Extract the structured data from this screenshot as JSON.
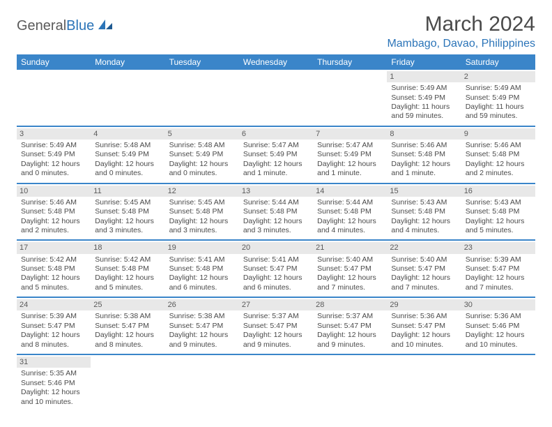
{
  "logo": {
    "text1": "General",
    "text2": "Blue"
  },
  "title": "March 2024",
  "location": "Mambago, Davao, Philippines",
  "colors": {
    "header_bg": "#3a85c9",
    "header_fg": "#ffffff",
    "daynum_bg": "#e8e8e8",
    "row_divider": "#3a85c9",
    "brand_blue": "#2b74b8",
    "text": "#4a4a4a"
  },
  "day_headers": [
    "Sunday",
    "Monday",
    "Tuesday",
    "Wednesday",
    "Thursday",
    "Friday",
    "Saturday"
  ],
  "weeks": [
    [
      null,
      null,
      null,
      null,
      null,
      {
        "n": "1",
        "sr": "Sunrise: 5:49 AM",
        "ss": "Sunset: 5:49 PM",
        "dl": "Daylight: 11 hours and 59 minutes."
      },
      {
        "n": "2",
        "sr": "Sunrise: 5:49 AM",
        "ss": "Sunset: 5:49 PM",
        "dl": "Daylight: 11 hours and 59 minutes."
      }
    ],
    [
      {
        "n": "3",
        "sr": "Sunrise: 5:49 AM",
        "ss": "Sunset: 5:49 PM",
        "dl": "Daylight: 12 hours and 0 minutes."
      },
      {
        "n": "4",
        "sr": "Sunrise: 5:48 AM",
        "ss": "Sunset: 5:49 PM",
        "dl": "Daylight: 12 hours and 0 minutes."
      },
      {
        "n": "5",
        "sr": "Sunrise: 5:48 AM",
        "ss": "Sunset: 5:49 PM",
        "dl": "Daylight: 12 hours and 0 minutes."
      },
      {
        "n": "6",
        "sr": "Sunrise: 5:47 AM",
        "ss": "Sunset: 5:49 PM",
        "dl": "Daylight: 12 hours and 1 minute."
      },
      {
        "n": "7",
        "sr": "Sunrise: 5:47 AM",
        "ss": "Sunset: 5:49 PM",
        "dl": "Daylight: 12 hours and 1 minute."
      },
      {
        "n": "8",
        "sr": "Sunrise: 5:46 AM",
        "ss": "Sunset: 5:48 PM",
        "dl": "Daylight: 12 hours and 1 minute."
      },
      {
        "n": "9",
        "sr": "Sunrise: 5:46 AM",
        "ss": "Sunset: 5:48 PM",
        "dl": "Daylight: 12 hours and 2 minutes."
      }
    ],
    [
      {
        "n": "10",
        "sr": "Sunrise: 5:46 AM",
        "ss": "Sunset: 5:48 PM",
        "dl": "Daylight: 12 hours and 2 minutes."
      },
      {
        "n": "11",
        "sr": "Sunrise: 5:45 AM",
        "ss": "Sunset: 5:48 PM",
        "dl": "Daylight: 12 hours and 3 minutes."
      },
      {
        "n": "12",
        "sr": "Sunrise: 5:45 AM",
        "ss": "Sunset: 5:48 PM",
        "dl": "Daylight: 12 hours and 3 minutes."
      },
      {
        "n": "13",
        "sr": "Sunrise: 5:44 AM",
        "ss": "Sunset: 5:48 PM",
        "dl": "Daylight: 12 hours and 3 minutes."
      },
      {
        "n": "14",
        "sr": "Sunrise: 5:44 AM",
        "ss": "Sunset: 5:48 PM",
        "dl": "Daylight: 12 hours and 4 minutes."
      },
      {
        "n": "15",
        "sr": "Sunrise: 5:43 AM",
        "ss": "Sunset: 5:48 PM",
        "dl": "Daylight: 12 hours and 4 minutes."
      },
      {
        "n": "16",
        "sr": "Sunrise: 5:43 AM",
        "ss": "Sunset: 5:48 PM",
        "dl": "Daylight: 12 hours and 5 minutes."
      }
    ],
    [
      {
        "n": "17",
        "sr": "Sunrise: 5:42 AM",
        "ss": "Sunset: 5:48 PM",
        "dl": "Daylight: 12 hours and 5 minutes."
      },
      {
        "n": "18",
        "sr": "Sunrise: 5:42 AM",
        "ss": "Sunset: 5:48 PM",
        "dl": "Daylight: 12 hours and 5 minutes."
      },
      {
        "n": "19",
        "sr": "Sunrise: 5:41 AM",
        "ss": "Sunset: 5:48 PM",
        "dl": "Daylight: 12 hours and 6 minutes."
      },
      {
        "n": "20",
        "sr": "Sunrise: 5:41 AM",
        "ss": "Sunset: 5:47 PM",
        "dl": "Daylight: 12 hours and 6 minutes."
      },
      {
        "n": "21",
        "sr": "Sunrise: 5:40 AM",
        "ss": "Sunset: 5:47 PM",
        "dl": "Daylight: 12 hours and 7 minutes."
      },
      {
        "n": "22",
        "sr": "Sunrise: 5:40 AM",
        "ss": "Sunset: 5:47 PM",
        "dl": "Daylight: 12 hours and 7 minutes."
      },
      {
        "n": "23",
        "sr": "Sunrise: 5:39 AM",
        "ss": "Sunset: 5:47 PM",
        "dl": "Daylight: 12 hours and 7 minutes."
      }
    ],
    [
      {
        "n": "24",
        "sr": "Sunrise: 5:39 AM",
        "ss": "Sunset: 5:47 PM",
        "dl": "Daylight: 12 hours and 8 minutes."
      },
      {
        "n": "25",
        "sr": "Sunrise: 5:38 AM",
        "ss": "Sunset: 5:47 PM",
        "dl": "Daylight: 12 hours and 8 minutes."
      },
      {
        "n": "26",
        "sr": "Sunrise: 5:38 AM",
        "ss": "Sunset: 5:47 PM",
        "dl": "Daylight: 12 hours and 9 minutes."
      },
      {
        "n": "27",
        "sr": "Sunrise: 5:37 AM",
        "ss": "Sunset: 5:47 PM",
        "dl": "Daylight: 12 hours and 9 minutes."
      },
      {
        "n": "28",
        "sr": "Sunrise: 5:37 AM",
        "ss": "Sunset: 5:47 PM",
        "dl": "Daylight: 12 hours and 9 minutes."
      },
      {
        "n": "29",
        "sr": "Sunrise: 5:36 AM",
        "ss": "Sunset: 5:47 PM",
        "dl": "Daylight: 12 hours and 10 minutes."
      },
      {
        "n": "30",
        "sr": "Sunrise: 5:36 AM",
        "ss": "Sunset: 5:46 PM",
        "dl": "Daylight: 12 hours and 10 minutes."
      }
    ],
    [
      {
        "n": "31",
        "sr": "Sunrise: 5:35 AM",
        "ss": "Sunset: 5:46 PM",
        "dl": "Daylight: 12 hours and 10 minutes."
      },
      null,
      null,
      null,
      null,
      null,
      null
    ]
  ]
}
